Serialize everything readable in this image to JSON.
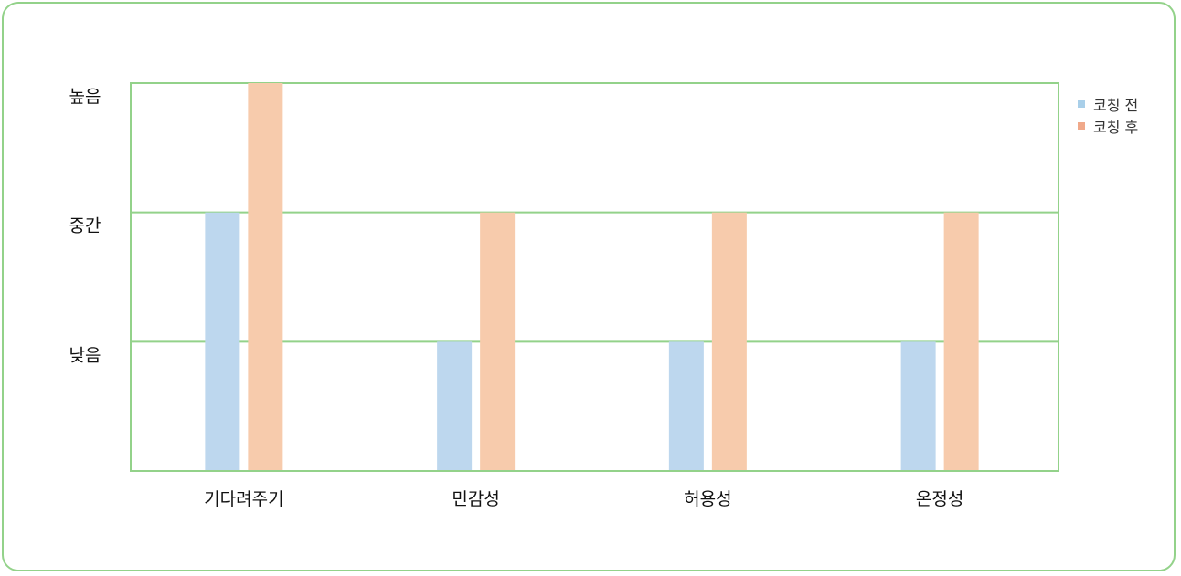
{
  "chart_data": {
    "type": "bar",
    "categories": [
      "기다려주기",
      "민감성",
      "허용성",
      "온정성"
    ],
    "ytick_labels": [
      "낮음",
      "중간",
      "높음"
    ],
    "ylim": [
      0,
      3
    ],
    "grid": true,
    "legend_position": "right-top",
    "series": [
      {
        "name": "코칭 전",
        "values": [
          2,
          1,
          1,
          1
        ],
        "color": "#bdd7ee"
      },
      {
        "name": "코칭 후",
        "values": [
          3,
          2,
          2,
          2
        ],
        "color": "#f7cbac"
      }
    ],
    "colors": {
      "frame": "#93d28a",
      "legend_before_marker": "#a9cfe9",
      "legend_after_marker": "#f0a98a"
    }
  }
}
